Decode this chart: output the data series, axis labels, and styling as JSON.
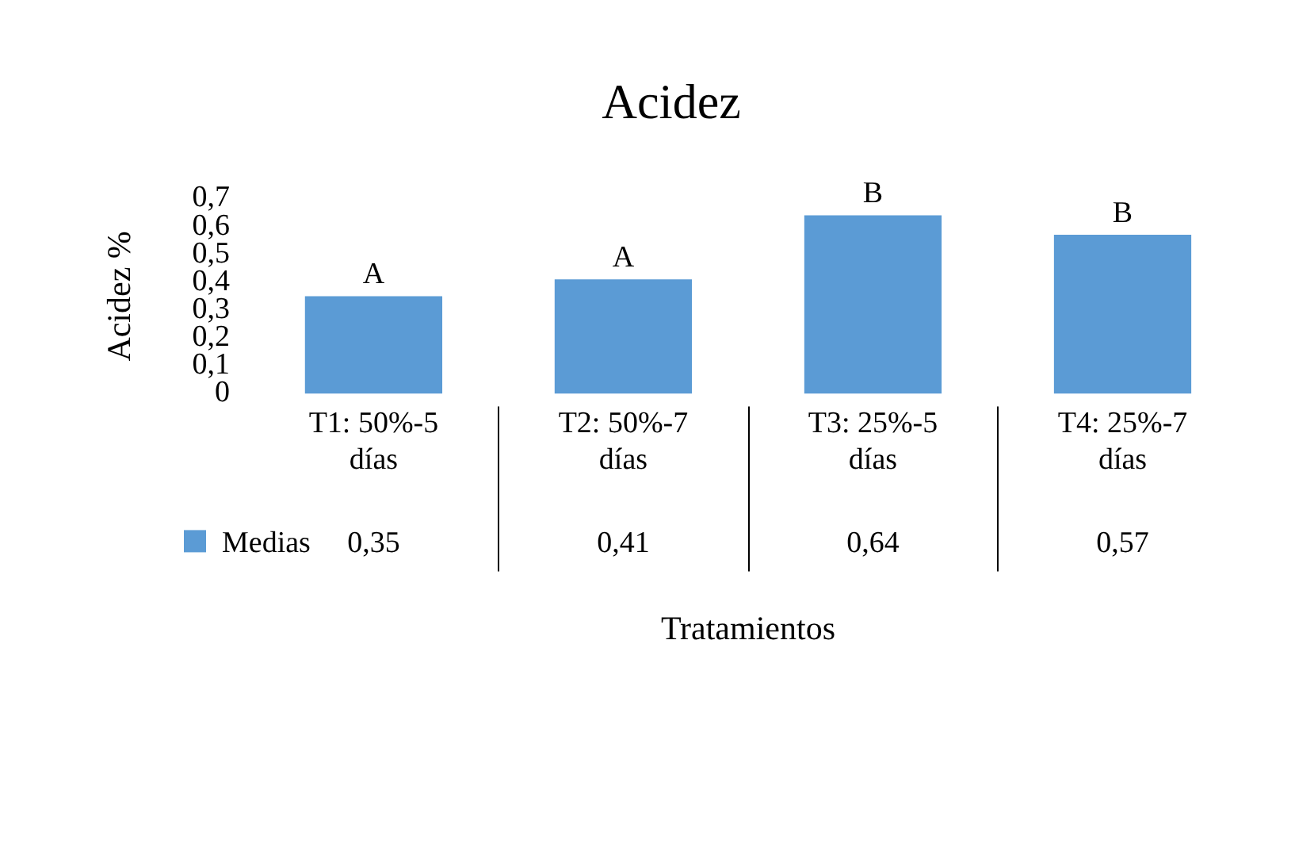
{
  "chart_data": {
    "type": "bar",
    "title": "Acidez",
    "xlabel": "Tratamientos",
    "ylabel": "Acidez %",
    "categories": [
      "T1: 50%-5 días",
      "T2: 50%-7 días",
      "T3: 25%-5 días",
      "T4: 25%-7 días"
    ],
    "series": [
      {
        "name": "Medias",
        "color": "#5b9bd5",
        "values": [
          0.35,
          0.41,
          0.64,
          0.57
        ],
        "value_labels": [
          "0,35",
          "0,41",
          "0,64",
          "0,57"
        ]
      }
    ],
    "ylim": [
      0,
      0.7
    ],
    "yticks": [
      0,
      {
        "value": 0.1,
        "label": "0,1"
      },
      {
        "value": 0.2,
        "label": "0,2"
      },
      {
        "value": 0.3,
        "label": "0,3"
      },
      {
        "value": 0.4,
        "label": "0,4"
      },
      {
        "value": 0.5,
        "label": "0,5"
      },
      {
        "value": 0.6,
        "label": "0,6"
      },
      {
        "value": 0.7,
        "label": "0,7"
      }
    ],
    "annotations": [
      {
        "text": "A",
        "x": "T1: 50%-5 días",
        "y": 0.35
      },
      {
        "text": "A",
        "x": "T2: 50%-7 días",
        "y": 0.41
      },
      {
        "text": "B",
        "x": "T3: 25%-5 días",
        "y": 0.64
      },
      {
        "text": "B",
        "x": "T4: 25%-7 días",
        "y": 0.57
      }
    ],
    "legend": "bottom left",
    "grid": false
  }
}
